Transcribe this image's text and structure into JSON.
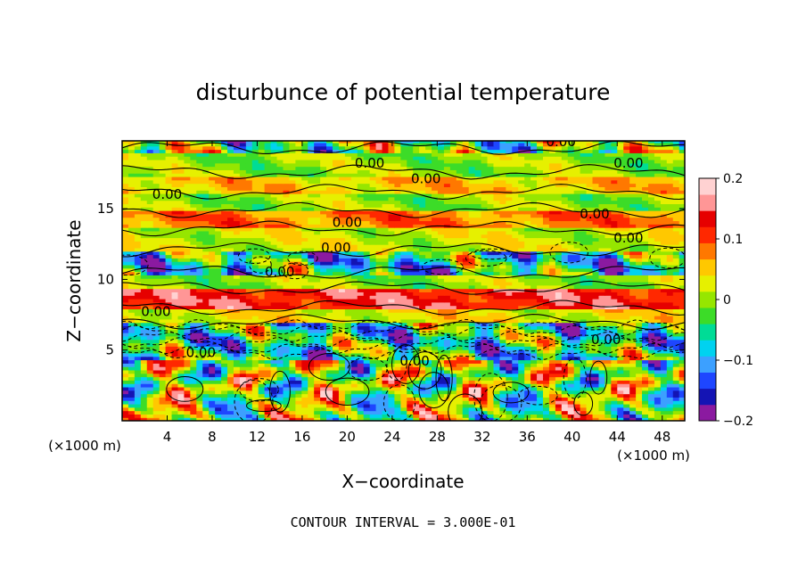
{
  "chart_data": {
    "type": "heatmap",
    "title": "disturbunce of potential temperature",
    "xlabel": "X−coordinate",
    "ylabel": "Z−coordinate",
    "x_unit": "(×1000 m)",
    "z_unit": "(×1000 m)",
    "xlim": [
      0,
      50
    ],
    "ylim": [
      0,
      19.8
    ],
    "x_ticks": [
      "4",
      "8",
      "12",
      "16",
      "20",
      "24",
      "28",
      "32",
      "36",
      "40",
      "44",
      "48"
    ],
    "y_ticks": [
      "5",
      "10",
      "15"
    ],
    "x_tick_values": [
      4,
      8,
      12,
      16,
      20,
      24,
      28,
      32,
      36,
      40,
      44,
      48
    ],
    "y_tick_values": [
      5,
      10,
      15
    ],
    "colorbar": {
      "min": -0.2,
      "max": 0.2,
      "tick_labels": [
        "0.2",
        "0.1",
        "0",
        "−0.1",
        "−0.2"
      ],
      "tick_values": [
        0.2,
        0.1,
        0,
        -0.1,
        -0.2
      ],
      "colors": [
        "#8b1aa0",
        "#1414b4",
        "#1e46ff",
        "#3ca0ff",
        "#00d2f0",
        "#00dc96",
        "#3cdc28",
        "#96e600",
        "#e6f000",
        "#ffc800",
        "#ff7800",
        "#ff2800",
        "#e60000",
        "#ff9696",
        "#ffd2d2"
      ]
    },
    "contour_labels": [
      "0.00",
      "0.00",
      "0.00",
      "0.00",
      "0.00",
      "0.00",
      "0.00",
      "0.00",
      "0.00",
      "0.00",
      "0.00",
      "0.00",
      "0.00",
      "0.00"
    ],
    "contour_label_positions": [
      [
        22,
        18.2
      ],
      [
        27,
        17.1
      ],
      [
        45,
        18.2
      ],
      [
        4,
        16.0
      ],
      [
        39,
        19.7
      ],
      [
        42,
        14.6
      ],
      [
        45,
        12.9
      ],
      [
        20,
        14.0
      ],
      [
        19,
        12.2
      ],
      [
        14,
        10.5
      ],
      [
        3,
        7.7
      ],
      [
        7,
        4.8
      ],
      [
        26,
        4.2
      ],
      [
        43,
        5.7
      ]
    ],
    "contour_interval_text": "CONTOUR INTERVAL = 3.000E-01",
    "layers": [
      {
        "z0": 0.0,
        "z1": 4.4,
        "value": 0.0,
        "kind": "turbulent"
      },
      {
        "z0": 4.4,
        "z1": 7.0,
        "value": -0.05,
        "kind": "mixed"
      },
      {
        "z0": 7.0,
        "z1": 8.0,
        "value": 0.03,
        "kind": "band"
      },
      {
        "z0": 8.0,
        "z1": 9.4,
        "value": 0.13,
        "kind": "band"
      },
      {
        "z0": 9.4,
        "z1": 10.4,
        "value": 0.0,
        "kind": "band"
      },
      {
        "z0": 10.4,
        "z1": 12.0,
        "value": -0.06,
        "kind": "mixed"
      },
      {
        "z0": 12.0,
        "z1": 13.6,
        "value": 0.02,
        "kind": "band"
      },
      {
        "z0": 13.6,
        "z1": 14.8,
        "value": 0.08,
        "kind": "band"
      },
      {
        "z0": 14.8,
        "z1": 16.0,
        "value": 0.0,
        "kind": "band"
      },
      {
        "z0": 16.0,
        "z1": 17.4,
        "value": 0.05,
        "kind": "band"
      },
      {
        "z0": 17.4,
        "z1": 19.0,
        "value": 0.0,
        "kind": "band"
      },
      {
        "z0": 19.0,
        "z1": 19.8,
        "value": -0.02,
        "kind": "mixed"
      }
    ]
  }
}
